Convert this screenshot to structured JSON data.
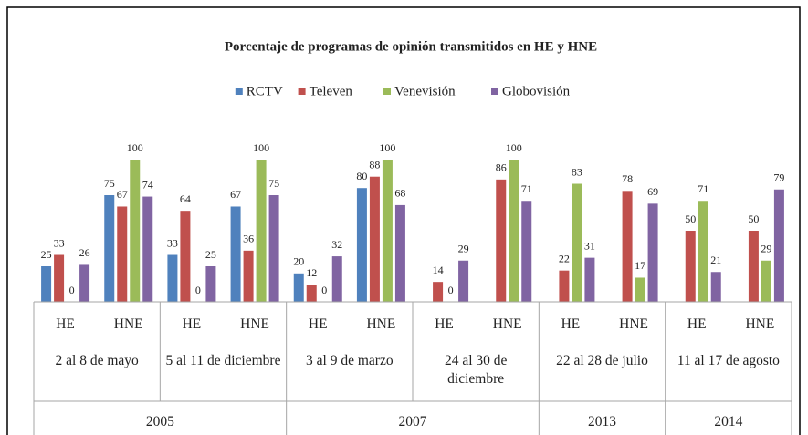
{
  "chart_data": {
    "type": "bar",
    "title": "Porcentaje de programas de opinión transmitidos en HE y HNE",
    "groups": [
      {
        "year": "2005",
        "periods": [
          {
            "name": "2 al 8 de mayo",
            "categories": [
              "HE",
              "HNE"
            ]
          },
          {
            "name": "5 al 11 de diciembre",
            "categories": [
              "HE",
              "HNE"
            ]
          }
        ]
      },
      {
        "year": "2007",
        "periods": [
          {
            "name": "3 al 9 de marzo",
            "categories": [
              "HE",
              "HNE"
            ]
          },
          {
            "name": "24 al 30 de diciembre",
            "categories": [
              "HE",
              "HNE"
            ]
          }
        ]
      },
      {
        "year": "2013",
        "periods": [
          {
            "name": "22 al 28 de julio",
            "categories": [
              "HE",
              "HNE"
            ]
          }
        ]
      },
      {
        "year": "2014",
        "periods": [
          {
            "name": "11 al 17 de agosto",
            "categories": [
              "HE",
              "HNE"
            ]
          }
        ]
      }
    ],
    "series": [
      {
        "name": "RCTV",
        "color": "#4f81bd",
        "values": [
          25,
          75,
          33,
          67,
          20,
          80,
          null,
          null,
          null,
          null,
          null,
          null
        ]
      },
      {
        "name": "Televen",
        "color": "#c0504d",
        "values": [
          33,
          67,
          64,
          36,
          12,
          88,
          14,
          86,
          22,
          78,
          50,
          50
        ]
      },
      {
        "name": "Venevisión",
        "color": "#9bbb59",
        "values": [
          0,
          100,
          0,
          100,
          0,
          100,
          0,
          100,
          83,
          17,
          71,
          29
        ]
      },
      {
        "name": "Globovisión",
        "color": "#8064a2",
        "values": [
          26,
          74,
          25,
          75,
          32,
          68,
          29,
          71,
          31,
          69,
          21,
          79
        ]
      }
    ],
    "legend": "top"
  }
}
